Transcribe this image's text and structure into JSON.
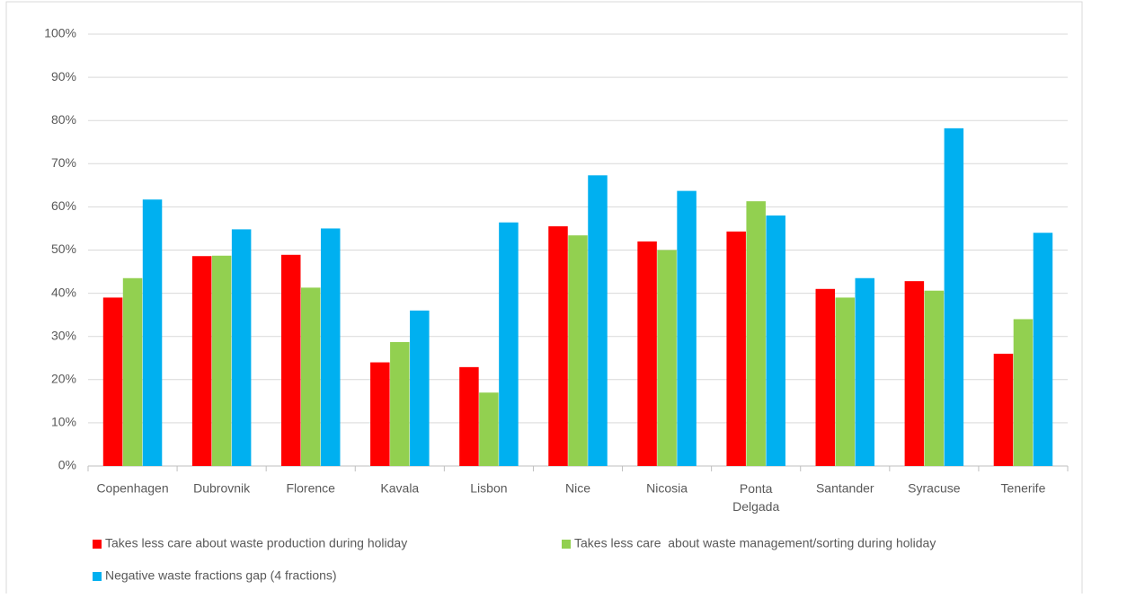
{
  "chart_data": {
    "type": "bar",
    "categories": [
      "Copenhagen",
      "Dubrovnik",
      "Florence",
      "Kavala",
      "Lisbon",
      "Nice",
      "Nicosia",
      "Ponta Delgada",
      "Santander",
      "Syracuse",
      "Tenerife"
    ],
    "series": [
      {
        "name": "Takes less care about waste production during holiday",
        "color": "#ff0000",
        "values": [
          39,
          48.6,
          48.9,
          24,
          22.9,
          55.5,
          52,
          54.3,
          41,
          42.8,
          26
        ]
      },
      {
        "name": "Takes less care  about waste management/sorting during holiday",
        "color": "#92d050",
        "values": [
          43.5,
          48.7,
          41.3,
          28.7,
          17,
          53.4,
          50,
          61.3,
          39,
          40.6,
          34
        ]
      },
      {
        "name": "Negative waste fractions gap (4 fractions)",
        "color": "#00b0f0",
        "values": [
          61.7,
          54.8,
          55,
          36,
          56.4,
          67.3,
          63.7,
          58,
          43.5,
          78.2,
          54
        ]
      }
    ],
    "ylim": [
      0,
      100
    ],
    "yticks": [
      {
        "value": 0,
        "label": "0%"
      },
      {
        "value": 10,
        "label": "10%"
      },
      {
        "value": 20,
        "label": "20%"
      },
      {
        "value": 30,
        "label": "30%"
      },
      {
        "value": 40,
        "label": "40%"
      },
      {
        "value": 50,
        "label": "50%"
      },
      {
        "value": 60,
        "label": "60%"
      },
      {
        "value": 70,
        "label": "70%"
      },
      {
        "value": 80,
        "label": "80%"
      },
      {
        "value": 90,
        "label": "90%"
      },
      {
        "value": 100,
        "label": "100%"
      }
    ],
    "grid": true,
    "legend": "bottom"
  }
}
